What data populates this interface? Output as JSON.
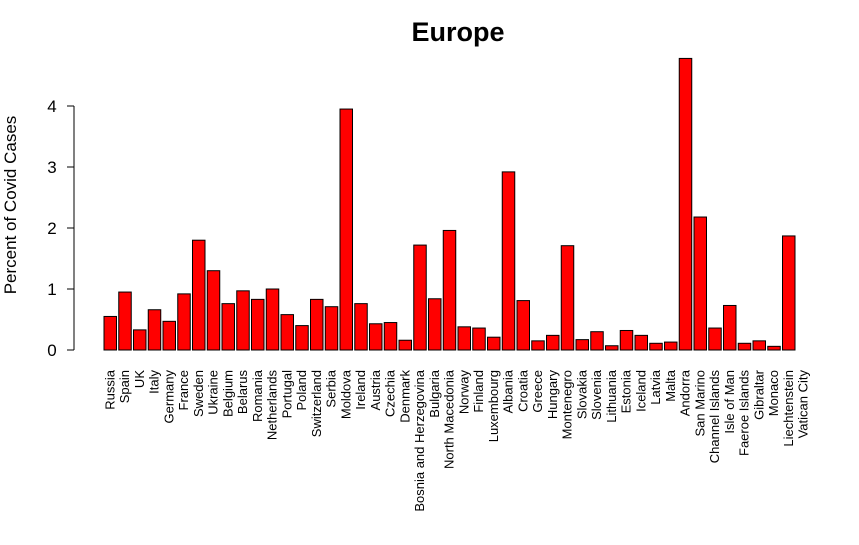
{
  "chart_data": {
    "type": "bar",
    "title": "Europe",
    "xlabel": "",
    "ylabel": "Percent of Covid Cases",
    "ylim": [
      0,
      4.8
    ],
    "yticks": [
      "0",
      "1",
      "2",
      "3",
      "4"
    ],
    "bar_color": "#ff0000",
    "categories": [
      "Russia",
      "Spain",
      "UK",
      "Italy",
      "Germany",
      "France",
      "Sweden",
      "Ukraine",
      "Belgium",
      "Belarus",
      "Romania",
      "Netherlands",
      "Portugal",
      "Poland",
      "Switzerland",
      "Serbia",
      "Moldova",
      "Ireland",
      "Austria",
      "Czechia",
      "Denmark",
      "Bosnia and Herzegovina",
      "Bulgaria",
      "North Macedonia",
      "Norway",
      "Finland",
      "Luxembourg",
      "Albania",
      "Croatia",
      "Greece",
      "Hungary",
      "Montenegro",
      "Slovakia",
      "Slovenia",
      "Lithuania",
      "Estonia",
      "Iceland",
      "Latvia",
      "Malta",
      "Andorra",
      "San Marino",
      "Channel Islands",
      "Isle of Man",
      "Faeroe Islands",
      "Gibraltar",
      "Monaco",
      "Liechtenstein",
      "Vatican City"
    ],
    "values": [
      0.55,
      0.95,
      0.33,
      0.66,
      0.47,
      0.92,
      1.8,
      1.3,
      0.76,
      0.97,
      0.83,
      1.0,
      0.58,
      0.4,
      0.83,
      0.71,
      3.95,
      0.76,
      0.43,
      0.45,
      0.16,
      1.72,
      0.84,
      1.96,
      0.38,
      0.36,
      0.21,
      2.92,
      0.81,
      0.15,
      0.24,
      1.71,
      0.17,
      0.3,
      0.07,
      0.32,
      0.24,
      0.11,
      0.13,
      4.78,
      2.18,
      0.36,
      0.73,
      0.11,
      0.15,
      0.06,
      1.87,
      0.0
    ]
  }
}
